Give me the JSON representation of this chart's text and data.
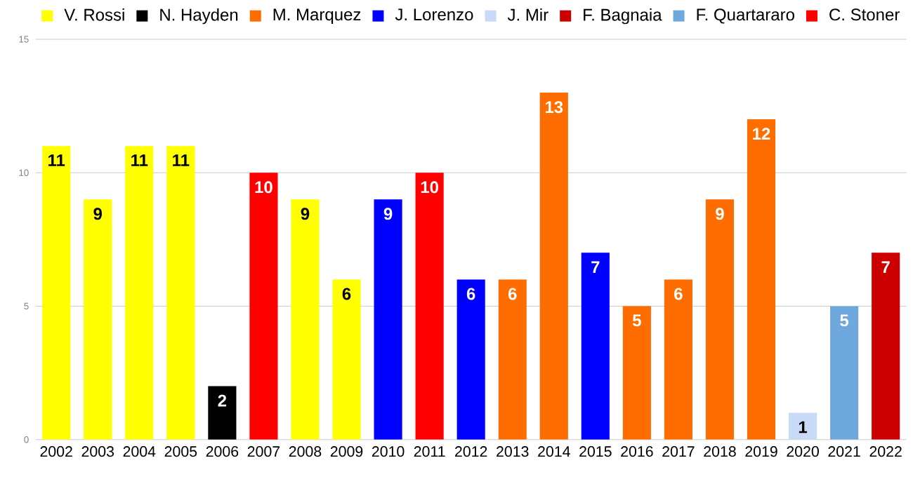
{
  "chart_data": {
    "type": "bar",
    "categories": [
      "2002",
      "2003",
      "2004",
      "2005",
      "2006",
      "2007",
      "2008",
      "2009",
      "2010",
      "2011",
      "2012",
      "2013",
      "2014",
      "2015",
      "2016",
      "2017",
      "2018",
      "2019",
      "2020",
      "2021",
      "2022"
    ],
    "series": [
      {
        "name": "V. Rossi",
        "color": "#ffff00",
        "values": [
          11,
          9,
          11,
          11,
          null,
          null,
          9,
          6,
          null,
          null,
          null,
          null,
          null,
          null,
          null,
          null,
          null,
          null,
          null,
          null,
          null
        ]
      },
      {
        "name": "N. Hayden",
        "color": "#000000",
        "values": [
          null,
          null,
          null,
          null,
          2,
          null,
          null,
          null,
          null,
          null,
          null,
          null,
          null,
          null,
          null,
          null,
          null,
          null,
          null,
          null,
          null
        ]
      },
      {
        "name": "M. Marquez",
        "color": "#ff6d01",
        "values": [
          null,
          null,
          null,
          null,
          null,
          null,
          null,
          null,
          null,
          null,
          null,
          6,
          13,
          null,
          5,
          6,
          9,
          12,
          null,
          null,
          null
        ]
      },
      {
        "name": "J. Lorenzo",
        "color": "#0000ff",
        "values": [
          null,
          null,
          null,
          null,
          null,
          null,
          null,
          null,
          9,
          null,
          6,
          null,
          null,
          7,
          null,
          null,
          null,
          null,
          null,
          null,
          null
        ]
      },
      {
        "name": "J. Mir",
        "color": "#c9daf8",
        "values": [
          null,
          null,
          null,
          null,
          null,
          null,
          null,
          null,
          null,
          null,
          null,
          null,
          null,
          null,
          null,
          null,
          null,
          null,
          1,
          null,
          null
        ]
      },
      {
        "name": "F. Bagnaia",
        "color": "#cc0000",
        "values": [
          null,
          null,
          null,
          null,
          null,
          null,
          null,
          null,
          null,
          null,
          null,
          null,
          null,
          null,
          null,
          null,
          null,
          null,
          null,
          null,
          7
        ]
      },
      {
        "name": "F. Quartararo",
        "color": "#6fa8dc",
        "values": [
          null,
          null,
          null,
          null,
          null,
          null,
          null,
          null,
          null,
          null,
          null,
          null,
          null,
          null,
          null,
          null,
          null,
          null,
          null,
          5,
          null
        ]
      },
      {
        "name": "C. Stoner",
        "color": "#ff0000",
        "values": [
          null,
          null,
          null,
          null,
          null,
          10,
          null,
          null,
          null,
          10,
          null,
          null,
          null,
          null,
          null,
          null,
          null,
          null,
          null,
          null,
          null
        ]
      }
    ],
    "ylim": [
      0,
      15
    ],
    "yticks": [
      0,
      5,
      10,
      15
    ],
    "grid": "y",
    "legend": "top",
    "data_labels": true
  }
}
